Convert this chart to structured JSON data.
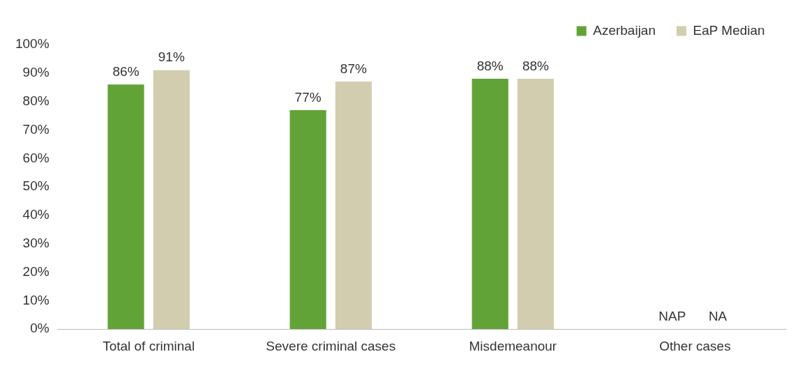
{
  "chart_data": {
    "type": "bar",
    "categories": [
      "Total of criminal",
      "Severe criminal cases",
      "Misdemeanour",
      "Other cases"
    ],
    "series": [
      {
        "name": "Azerbaijan",
        "color": "#62a337",
        "values": [
          86,
          77,
          88,
          null
        ],
        "value_labels": [
          "86%",
          "77%",
          "88%",
          "NAP"
        ]
      },
      {
        "name": "EaP Median",
        "color": "#d3cdb0",
        "values": [
          91,
          87,
          88,
          null
        ],
        "value_labels": [
          "91%",
          "87%",
          "88%",
          "NA"
        ]
      }
    ],
    "ylim": [
      0,
      100
    ],
    "yticks": [
      {
        "value": 0,
        "label": "0%"
      },
      {
        "value": 10,
        "label": "10%"
      },
      {
        "value": 20,
        "label": "20%"
      },
      {
        "value": 30,
        "label": "30%"
      },
      {
        "value": 40,
        "label": "40%"
      },
      {
        "value": 50,
        "label": "50%"
      },
      {
        "value": 60,
        "label": "60%"
      },
      {
        "value": 70,
        "label": "70%"
      },
      {
        "value": 80,
        "label": "80%"
      },
      {
        "value": 90,
        "label": "90%"
      },
      {
        "value": 100,
        "label": "100%"
      }
    ],
    "grid": false,
    "legend": "top right"
  }
}
